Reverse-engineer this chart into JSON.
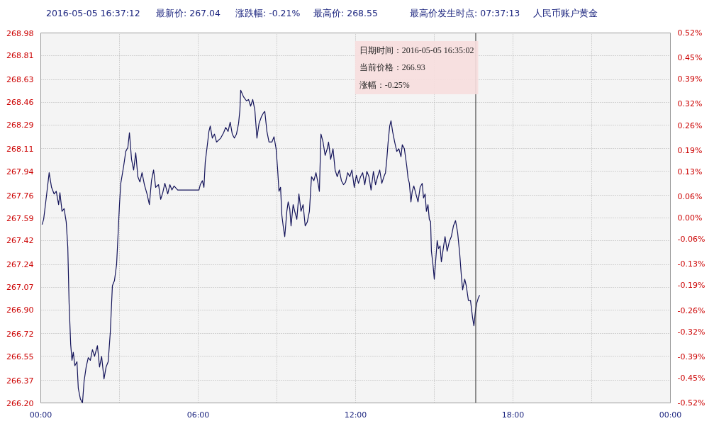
{
  "chart_data": {
    "type": "line",
    "title": "2016-05-05 16:37:12",
    "subtitle": "人民币账户黄金",
    "annotations": [
      "最新价: 267.04",
      "涨跌幅: -0.21%",
      "最高价: 268.55",
      "最高价发生时点: 07:37:13",
      "日期时间：2016-05-05 16:35:02",
      "当前价格：266.93",
      "涨幅：-0.25%"
    ],
    "x": [
      0.05,
      0.11,
      0.19,
      0.32,
      0.41,
      0.51,
      0.59,
      0.68,
      0.73,
      0.81,
      0.89,
      0.97,
      1.03,
      1.08,
      1.14,
      1.19,
      1.24,
      1.3,
      1.38,
      1.43,
      1.51,
      1.59,
      1.65,
      1.73,
      1.81,
      1.89,
      1.97,
      2.05,
      2.16,
      2.24,
      2.32,
      2.41,
      2.49,
      2.57,
      2.65,
      2.73,
      2.81,
      2.89,
      2.95,
      3.0,
      3.05,
      3.16,
      3.24,
      3.32,
      3.38,
      3.46,
      3.54,
      3.62,
      3.7,
      3.78,
      3.86,
      3.95,
      4.05,
      4.14,
      4.22,
      4.3,
      4.38,
      4.49,
      4.57,
      4.65,
      4.73,
      4.84,
      4.92,
      5.0,
      5.08,
      5.22,
      6.03,
      6.08,
      6.16,
      6.22,
      6.27,
      6.35,
      6.41,
      6.46,
      6.54,
      6.62,
      6.7,
      6.86,
      6.97,
      7.05,
      7.14,
      7.22,
      7.3,
      7.38,
      7.46,
      7.54,
      7.59,
      7.62,
      7.73,
      7.84,
      7.92,
      8.0,
      8.08,
      8.16,
      8.24,
      8.32,
      8.41,
      8.49,
      8.54,
      8.62,
      8.7,
      8.81,
      8.89,
      8.97,
      9.03,
      9.08,
      9.14,
      9.19,
      9.24,
      9.3,
      9.38,
      9.43,
      9.49,
      9.54,
      9.62,
      9.68,
      9.76,
      9.84,
      9.92,
      10.0,
      10.08,
      10.16,
      10.24,
      10.32,
      10.41,
      10.49,
      10.57,
      10.62,
      10.68,
      10.76,
      10.84,
      10.92,
      10.97,
      11.05,
      11.14,
      11.22,
      11.3,
      11.38,
      11.46,
      11.54,
      11.62,
      11.7,
      11.78,
      11.86,
      11.95,
      12.03,
      12.11,
      12.19,
      12.27,
      12.35,
      12.43,
      12.51,
      12.59,
      12.68,
      12.76,
      12.84,
      12.92,
      13.0,
      13.08,
      13.14,
      13.19,
      13.24,
      13.3,
      13.35,
      13.41,
      13.49,
      13.57,
      13.65,
      13.73,
      13.78,
      13.86,
      13.95,
      14.0,
      14.05,
      14.11,
      14.16,
      14.22,
      14.3,
      14.38,
      14.46,
      14.54,
      14.59,
      14.65,
      14.7,
      14.76,
      14.81,
      14.86,
      14.89,
      14.95,
      15.0,
      15.05,
      15.11,
      15.16,
      15.22,
      15.27,
      15.32,
      15.41,
      15.49,
      15.57,
      15.65,
      15.73,
      15.81,
      15.89,
      15.97,
      16.03,
      16.08,
      16.16,
      16.22,
      16.3,
      16.38,
      16.46,
      16.51,
      16.57,
      16.62,
      16.68,
      16.73
    ],
    "series": [
      {
        "color": "#14145a",
        "values": [
          267.54,
          267.58,
          267.71,
          267.93,
          267.82,
          267.77,
          267.79,
          267.69,
          267.78,
          267.64,
          267.66,
          267.56,
          267.37,
          266.95,
          266.64,
          266.52,
          266.58,
          266.48,
          266.51,
          266.31,
          266.23,
          266.2,
          266.36,
          266.47,
          266.54,
          266.52,
          266.6,
          266.55,
          266.63,
          266.47,
          266.55,
          266.38,
          266.47,
          266.51,
          266.73,
          267.08,
          267.12,
          267.24,
          267.48,
          267.69,
          267.85,
          267.98,
          268.09,
          268.12,
          268.23,
          268.03,
          267.95,
          268.08,
          267.9,
          267.86,
          267.93,
          267.84,
          267.77,
          267.69,
          267.87,
          267.95,
          267.82,
          267.84,
          267.73,
          267.78,
          267.85,
          267.77,
          267.84,
          267.8,
          267.83,
          267.8,
          267.8,
          267.84,
          267.87,
          267.82,
          268.01,
          268.14,
          268.24,
          268.28,
          268.19,
          268.22,
          268.16,
          268.19,
          268.23,
          268.27,
          268.24,
          268.31,
          268.22,
          268.19,
          268.22,
          268.3,
          268.4,
          268.55,
          268.5,
          268.47,
          268.48,
          268.43,
          268.48,
          268.4,
          268.19,
          268.3,
          268.35,
          268.38,
          268.39,
          268.24,
          268.16,
          268.16,
          268.2,
          268.11,
          267.95,
          267.79,
          267.82,
          267.61,
          267.53,
          267.45,
          267.64,
          267.71,
          267.66,
          267.53,
          267.69,
          267.64,
          267.58,
          267.77,
          267.64,
          267.69,
          267.53,
          267.56,
          267.64,
          267.9,
          267.87,
          267.93,
          267.85,
          267.79,
          268.22,
          268.16,
          268.06,
          268.11,
          268.16,
          268.03,
          268.11,
          267.95,
          267.9,
          267.95,
          267.87,
          267.84,
          267.86,
          267.93,
          267.9,
          267.95,
          267.82,
          267.91,
          267.85,
          267.9,
          267.93,
          267.84,
          267.94,
          267.9,
          267.8,
          267.94,
          267.84,
          267.9,
          267.95,
          267.85,
          267.9,
          267.93,
          268.03,
          268.16,
          268.28,
          268.32,
          268.24,
          268.16,
          268.09,
          268.11,
          268.05,
          268.14,
          268.11,
          267.98,
          267.89,
          267.85,
          267.71,
          267.79,
          267.83,
          267.77,
          267.71,
          267.82,
          267.85,
          267.74,
          267.77,
          267.64,
          267.69,
          267.58,
          267.56,
          267.34,
          267.24,
          267.13,
          267.26,
          267.42,
          267.36,
          267.38,
          267.26,
          267.33,
          267.45,
          267.34,
          267.41,
          267.45,
          267.53,
          267.57,
          267.48,
          267.32,
          267.16,
          267.05,
          267.13,
          267.08,
          266.97,
          266.97,
          266.84,
          266.78,
          266.89,
          266.95,
          266.99,
          267.01
        ]
      }
    ],
    "xlim": [
      0,
      24
    ],
    "xticks": [
      {
        "value": 0,
        "label": "00:00"
      },
      {
        "value": 3,
        "label": null
      },
      {
        "value": 6,
        "label": "06:00"
      },
      {
        "value": 9,
        "label": null
      },
      {
        "value": 12,
        "label": "12:00"
      },
      {
        "value": 15,
        "label": null
      },
      {
        "value": 18,
        "label": "18:00"
      },
      {
        "value": 21,
        "label": null
      },
      {
        "value": 24,
        "label": "00:00"
      }
    ],
    "ylim": [
      266.2,
      268.98
    ],
    "yticks": [
      {
        "value": 266.2,
        "label": "266.20"
      },
      266.37,
      266.55,
      266.72,
      {
        "value": 266.9,
        "label": "266.90"
      },
      267.07,
      267.24,
      267.42,
      267.59,
      267.76,
      267.94,
      268.11,
      268.29,
      268.46,
      268.63,
      268.81,
      268.98
    ],
    "y2lim": [
      -0.52,
      0.52
    ],
    "y2ticks": [
      {
        "value": -0.52,
        "label": "-0.52%"
      },
      {
        "value": -0.45,
        "label": "-0.45%"
      },
      {
        "value": -0.39,
        "label": "-0.39%"
      },
      {
        "value": -0.32,
        "label": "-0.32%"
      },
      {
        "value": -0.26,
        "label": "-0.26%"
      },
      {
        "value": -0.19,
        "label": "-0.19%"
      },
      {
        "value": -0.13,
        "label": "-0.13%"
      },
      {
        "value": -0.06,
        "label": "-0.06%"
      },
      {
        "value": 0,
        "label": "0.00%"
      },
      {
        "value": 0.06,
        "label": "0.06%"
      },
      {
        "value": 0.13,
        "label": "0.13%"
      },
      {
        "value": 0.19,
        "label": "0.19%"
      },
      {
        "value": 0.26,
        "label": "0.26%"
      },
      {
        "value": 0.32,
        "label": "0.32%"
      },
      {
        "value": 0.39,
        "label": "0.39%"
      },
      {
        "value": 0.45,
        "label": "0.45%"
      },
      {
        "value": 0.52,
        "label": "0.52%"
      }
    ],
    "ref_lines": [
      {
        "axis": "x",
        "value": 16.58,
        "color": "#333333"
      }
    ],
    "grid": true
  }
}
